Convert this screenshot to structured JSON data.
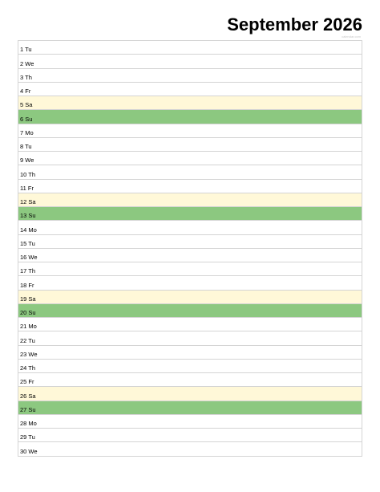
{
  "header": {
    "title": "September 2026",
    "watermark": "calendar.com"
  },
  "colors": {
    "saturday": "#fff8d8",
    "sunday": "#8cc880",
    "grid_line": "#d4d4d4"
  },
  "days": [
    {
      "label": "1 Tu",
      "type": "weekday"
    },
    {
      "label": "2 We",
      "type": "weekday"
    },
    {
      "label": "3 Th",
      "type": "weekday"
    },
    {
      "label": "4 Fr",
      "type": "weekday"
    },
    {
      "label": "5 Sa",
      "type": "sat"
    },
    {
      "label": "6 Su",
      "type": "sun"
    },
    {
      "label": "7 Mo",
      "type": "weekday"
    },
    {
      "label": "8 Tu",
      "type": "weekday"
    },
    {
      "label": "9 We",
      "type": "weekday"
    },
    {
      "label": "10 Th",
      "type": "weekday"
    },
    {
      "label": "11 Fr",
      "type": "weekday"
    },
    {
      "label": "12 Sa",
      "type": "sat"
    },
    {
      "label": "13 Su",
      "type": "sun"
    },
    {
      "label": "14 Mo",
      "type": "weekday"
    },
    {
      "label": "15 Tu",
      "type": "weekday"
    },
    {
      "label": "16 We",
      "type": "weekday"
    },
    {
      "label": "17 Th",
      "type": "weekday"
    },
    {
      "label": "18 Fr",
      "type": "weekday"
    },
    {
      "label": "19 Sa",
      "type": "sat"
    },
    {
      "label": "20 Su",
      "type": "sun"
    },
    {
      "label": "21 Mo",
      "type": "weekday"
    },
    {
      "label": "22 Tu",
      "type": "weekday"
    },
    {
      "label": "23 We",
      "type": "weekday"
    },
    {
      "label": "24 Th",
      "type": "weekday"
    },
    {
      "label": "25 Fr",
      "type": "weekday"
    },
    {
      "label": "26 Sa",
      "type": "sat"
    },
    {
      "label": "27 Su",
      "type": "sun"
    },
    {
      "label": "28 Mo",
      "type": "weekday"
    },
    {
      "label": "29 Tu",
      "type": "weekday"
    },
    {
      "label": "30 We",
      "type": "weekday"
    }
  ]
}
